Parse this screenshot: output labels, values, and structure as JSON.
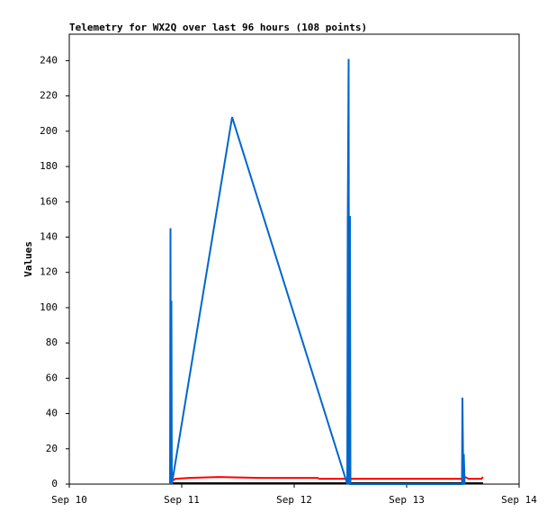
{
  "chart_data": {
    "type": "line",
    "title": "Telemetry for WX2Q over last 96 hours (108 points)",
    "y_label": "Values",
    "xlim": [
      10,
      14
    ],
    "xticks": [
      {
        "value": 10,
        "label": "Sep 10"
      },
      {
        "value": 11,
        "label": "Sep 11"
      },
      {
        "value": 12,
        "label": "Sep 12"
      },
      {
        "value": 13,
        "label": "Sep 13"
      },
      {
        "value": 14,
        "label": "Sep 14"
      }
    ],
    "ylim": [
      0,
      255
    ],
    "yticks": [
      0,
      20,
      40,
      60,
      80,
      100,
      120,
      140,
      160,
      180,
      200,
      220,
      240
    ],
    "grid": false,
    "series": [
      {
        "color": "#000000",
        "x": [
          10.92,
          13.68
        ],
        "values": [
          0.5,
          0.5
        ]
      },
      {
        "color": "#ff0000",
        "x": [
          10.92,
          10.944,
          11.064,
          11.328,
          11.704,
          12.208,
          12.224,
          13.504,
          13.52,
          13.552,
          13.664,
          13.68
        ],
        "values": [
          2,
          3,
          3.5,
          4,
          3.5,
          3.5,
          3,
          3,
          4,
          3,
          3,
          4
        ]
      },
      {
        "color": "#0066cc",
        "x": [
          10.896,
          10.9,
          10.904,
          10.908,
          10.912,
          11.448,
          12.472,
          12.476,
          12.484,
          12.488,
          12.496,
          12.5,
          13.492,
          13.496,
          13.504,
          13.508,
          13.516
        ],
        "values": [
          0,
          145,
          0,
          104,
          0,
          208,
          0,
          145,
          241,
          0,
          152,
          0,
          0,
          49,
          0,
          17,
          0
        ]
      }
    ]
  }
}
